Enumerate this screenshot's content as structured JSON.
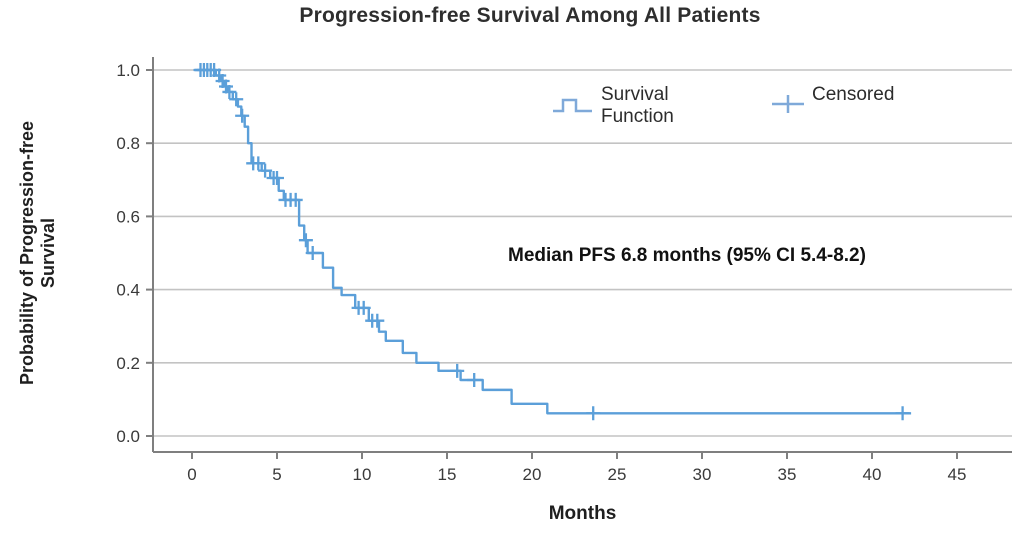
{
  "title": "Progression-free Survival Among All Patients",
  "y_axis": {
    "label_line1": "Probability of Progression-free",
    "label_line2": "Survival",
    "ticks": [
      "1.0",
      "0.8",
      "0.6",
      "0.4",
      "0.2",
      "0.0"
    ]
  },
  "x_axis": {
    "label": "Months",
    "ticks": [
      "0",
      "5",
      "10",
      "15",
      "20",
      "25",
      "30",
      "35",
      "40",
      "45"
    ]
  },
  "legend": {
    "survival_line1": "Survival",
    "survival_line2": "Function",
    "censored_label": "Censored"
  },
  "annotation": "Median PFS 6.8 months (95% CI 5.4-8.2)",
  "colors": {
    "curve": "#5b9fd9",
    "legend_glyph": "#7fa9d9",
    "grid": "#c3c3c3",
    "axis": "#7f7f7f",
    "tick_text": "#3a3a3a"
  },
  "chart_data": {
    "type": "line",
    "subtype": "kaplan-meier-step-curve",
    "title": "Progression-free Survival Among All Patients",
    "xlabel": "Months",
    "ylabel": "Probability of Progression-free Survival",
    "xlim": [
      0,
      45
    ],
    "x_tick_values": [
      0,
      5,
      10,
      15,
      20,
      25,
      30,
      35,
      40,
      45
    ],
    "ylim": [
      0.0,
      1.0
    ],
    "y_tick_values": [
      1.0,
      0.8,
      0.6,
      0.4,
      0.2,
      0.0
    ],
    "grid": "horizontal-only",
    "legend_entries": [
      "Survival Function",
      "Censored"
    ],
    "legend_position": "top-inside",
    "median_pfs_months": 6.8,
    "ci_95_months": [
      5.4,
      8.2
    ],
    "curve_start_month": 0.15,
    "curve_end_month": 42.3,
    "survival_steps": [
      [
        0.15,
        1.0
      ],
      [
        1.4,
        0.985
      ],
      [
        1.7,
        0.97
      ],
      [
        1.9,
        0.955
      ],
      [
        2.1,
        0.94
      ],
      [
        2.4,
        0.92
      ],
      [
        2.7,
        0.9
      ],
      [
        2.9,
        0.875
      ],
      [
        3.1,
        0.845
      ],
      [
        3.3,
        0.8
      ],
      [
        3.5,
        0.745
      ],
      [
        4.1,
        0.725
      ],
      [
        4.6,
        0.705
      ],
      [
        5.1,
        0.67
      ],
      [
        5.4,
        0.645
      ],
      [
        6.3,
        0.575
      ],
      [
        6.6,
        0.535
      ],
      [
        6.8,
        0.5
      ],
      [
        7.7,
        0.46
      ],
      [
        8.3,
        0.405
      ],
      [
        8.8,
        0.385
      ],
      [
        9.6,
        0.35
      ],
      [
        10.4,
        0.315
      ],
      [
        11.0,
        0.285
      ],
      [
        11.4,
        0.26
      ],
      [
        12.4,
        0.227
      ],
      [
        13.2,
        0.2
      ],
      [
        14.5,
        0.178
      ],
      [
        15.8,
        0.153
      ],
      [
        17.1,
        0.126
      ],
      [
        18.8,
        0.088
      ],
      [
        20.9,
        0.062
      ]
    ],
    "censored_points": [
      [
        0.5,
        1.0
      ],
      [
        0.7,
        1.0
      ],
      [
        0.9,
        1.0
      ],
      [
        1.1,
        1.0
      ],
      [
        1.3,
        1.0
      ],
      [
        1.6,
        0.985
      ],
      [
        1.8,
        0.97
      ],
      [
        2.0,
        0.955
      ],
      [
        2.2,
        0.94
      ],
      [
        2.6,
        0.92
      ],
      [
        2.95,
        0.875
      ],
      [
        3.6,
        0.745
      ],
      [
        3.9,
        0.745
      ],
      [
        4.3,
        0.725
      ],
      [
        4.8,
        0.705
      ],
      [
        5.0,
        0.705
      ],
      [
        5.5,
        0.645
      ],
      [
        5.8,
        0.645
      ],
      [
        6.1,
        0.645
      ],
      [
        6.7,
        0.535
      ],
      [
        7.1,
        0.5
      ],
      [
        9.8,
        0.35
      ],
      [
        10.1,
        0.35
      ],
      [
        10.6,
        0.315
      ],
      [
        10.9,
        0.315
      ],
      [
        15.6,
        0.178
      ],
      [
        16.6,
        0.153
      ],
      [
        23.6,
        0.062
      ],
      [
        41.8,
        0.062
      ]
    ]
  }
}
